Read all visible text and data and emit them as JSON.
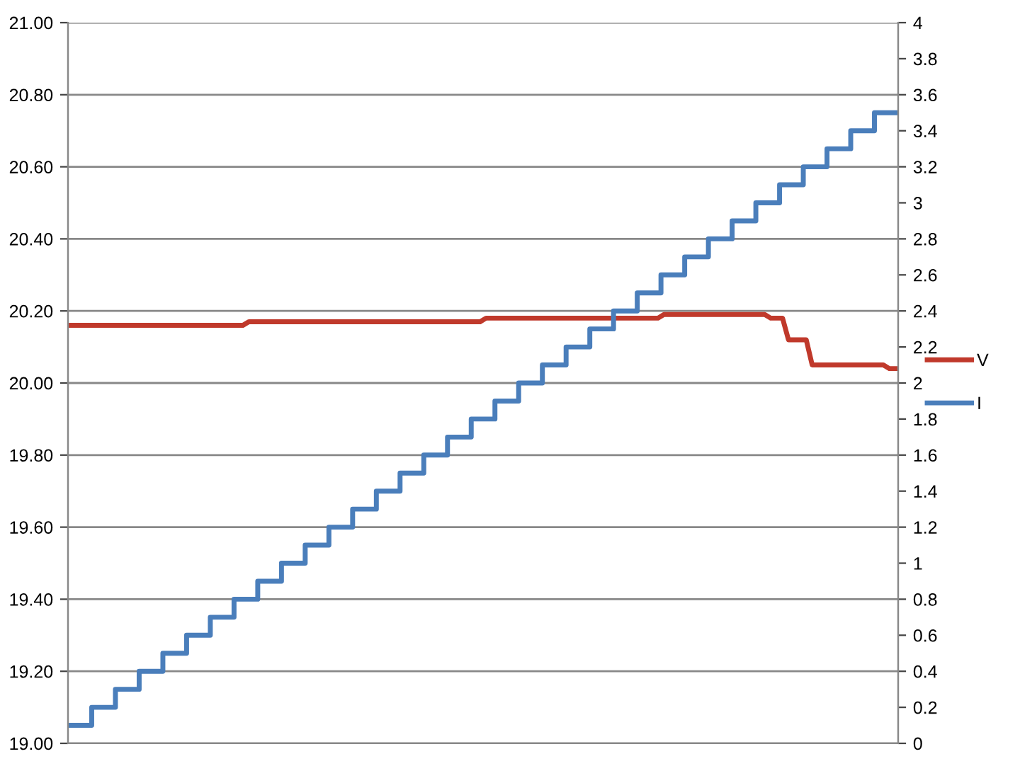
{
  "chart_data": {
    "type": "line",
    "categories": [
      null,
      null,
      null,
      null,
      null,
      null,
      null,
      null,
      null,
      null,
      null,
      null,
      null,
      null,
      null,
      null,
      null,
      null,
      null,
      null,
      null,
      null,
      null,
      null,
      null,
      null,
      null,
      null,
      null,
      null,
      null,
      null,
      null,
      null,
      null,
      null,
      null,
      null,
      null,
      null,
      null,
      null,
      null,
      null,
      null,
      null,
      null,
      null,
      null,
      null,
      null,
      null,
      null,
      null,
      null,
      null,
      null,
      null,
      null,
      null,
      null,
      null,
      null,
      null,
      null,
      null,
      null,
      null,
      null,
      null,
      null,
      null,
      null,
      null,
      null,
      null,
      null,
      null,
      null,
      null,
      null,
      null,
      null,
      null,
      null,
      null,
      null,
      null,
      null,
      null,
      null,
      null,
      null,
      null,
      null,
      null,
      null,
      null,
      null,
      null,
      null,
      null,
      null,
      null,
      null,
      null,
      null,
      null,
      null,
      null,
      null,
      null,
      null,
      null,
      null,
      null,
      null,
      null,
      null,
      null,
      null,
      null,
      null,
      null,
      null,
      null,
      null,
      null,
      null,
      null,
      null,
      null,
      null,
      null,
      null,
      null,
      null,
      null,
      null,
      null
    ],
    "series": [
      {
        "name": "V",
        "color": "#c0392b",
        "values": [
          20.16,
          20.16,
          20.16,
          20.16,
          20.16,
          20.16,
          20.16,
          20.16,
          20.16,
          20.16,
          20.16,
          20.16,
          20.16,
          20.16,
          20.16,
          20.16,
          20.16,
          20.16,
          20.16,
          20.16,
          20.16,
          20.16,
          20.16,
          20.16,
          20.16,
          20.16,
          20.16,
          20.16,
          20.16,
          20.16,
          20.17,
          20.17,
          20.17,
          20.17,
          20.17,
          20.17,
          20.17,
          20.17,
          20.17,
          20.17,
          20.17,
          20.17,
          20.17,
          20.17,
          20.17,
          20.17,
          20.17,
          20.17,
          20.17,
          20.17,
          20.17,
          20.17,
          20.17,
          20.17,
          20.17,
          20.17,
          20.17,
          20.17,
          20.17,
          20.17,
          20.17,
          20.17,
          20.17,
          20.17,
          20.17,
          20.17,
          20.17,
          20.17,
          20.17,
          20.17,
          20.18,
          20.18,
          20.18,
          20.18,
          20.18,
          20.18,
          20.18,
          20.18,
          20.18,
          20.18,
          20.18,
          20.18,
          20.18,
          20.18,
          20.18,
          20.18,
          20.18,
          20.18,
          20.18,
          20.18,
          20.18,
          20.18,
          20.18,
          20.18,
          20.18,
          20.18,
          20.18,
          20.18,
          20.18,
          20.18,
          20.19,
          20.19,
          20.19,
          20.19,
          20.19,
          20.19,
          20.19,
          20.19,
          20.19,
          20.19,
          20.19,
          20.19,
          20.19,
          20.19,
          20.19,
          20.19,
          20.19,
          20.19,
          20.18,
          20.18,
          20.18,
          20.12,
          20.12,
          20.12,
          20.12,
          20.05,
          20.05,
          20.05,
          20.05,
          20.05,
          20.05,
          20.05,
          20.05,
          20.05,
          20.05,
          20.05,
          20.05,
          20.05,
          20.04,
          20.04
        ]
      },
      {
        "name": "I",
        "color": "#4a7ebb",
        "type": "step",
        "axis": "y2",
        "values": [
          0.1,
          0.1,
          0.1,
          0.1,
          0.2,
          0.2,
          0.2,
          0.2,
          0.3,
          0.3,
          0.3,
          0.3,
          0.4,
          0.4,
          0.4,
          0.4,
          0.5,
          0.5,
          0.5,
          0.5,
          0.6,
          0.6,
          0.6,
          0.6,
          0.7,
          0.7,
          0.7,
          0.7,
          0.8,
          0.8,
          0.8,
          0.8,
          0.9,
          0.9,
          0.9,
          0.9,
          1.0,
          1.0,
          1.0,
          1.0,
          1.1,
          1.1,
          1.1,
          1.1,
          1.2,
          1.2,
          1.2,
          1.2,
          1.3,
          1.3,
          1.3,
          1.3,
          1.4,
          1.4,
          1.4,
          1.4,
          1.5,
          1.5,
          1.5,
          1.5,
          1.6,
          1.6,
          1.6,
          1.6,
          1.7,
          1.7,
          1.7,
          1.7,
          1.8,
          1.8,
          1.8,
          1.8,
          1.9,
          1.9,
          1.9,
          1.9,
          2.0,
          2.0,
          2.0,
          2.0,
          2.1,
          2.1,
          2.1,
          2.1,
          2.2,
          2.2,
          2.2,
          2.2,
          2.3,
          2.3,
          2.3,
          2.3,
          2.4,
          2.4,
          2.4,
          2.4,
          2.5,
          2.5,
          2.5,
          2.5,
          2.6,
          2.6,
          2.6,
          2.6,
          2.7,
          2.7,
          2.7,
          2.7,
          2.8,
          2.8,
          2.8,
          2.8,
          2.9,
          2.9,
          2.9,
          2.9,
          3.0,
          3.0,
          3.0,
          3.0,
          3.1,
          3.1,
          3.1,
          3.1,
          3.2,
          3.2,
          3.2,
          3.2,
          3.3,
          3.3,
          3.3,
          3.3,
          3.4,
          3.4,
          3.4,
          3.4,
          3.5,
          3.5,
          3.5,
          3.5
        ]
      }
    ],
    "ylim": [
      19.0,
      21.0
    ],
    "yticks": [
      {
        "value": 19.0,
        "label": "19.00"
      },
      {
        "value": 19.2,
        "label": "19.20"
      },
      {
        "value": 19.4,
        "label": "19.40"
      },
      {
        "value": 19.6,
        "label": "19.60"
      },
      {
        "value": 19.8,
        "label": "19.80"
      },
      {
        "value": 20.0,
        "label": "20.00"
      },
      {
        "value": 20.2,
        "label": "20.20"
      },
      {
        "value": 20.4,
        "label": "20.40"
      },
      {
        "value": 20.6,
        "label": "20.60"
      },
      {
        "value": 20.8,
        "label": "20.80"
      },
      {
        "value": 21.0,
        "label": "21.00"
      }
    ],
    "y2lim": [
      0,
      4
    ],
    "y2ticks": [
      0,
      0.2,
      0.4,
      0.6,
      0.8,
      1,
      1.2,
      1.4,
      1.6,
      1.8,
      2,
      2.2,
      2.4,
      2.6,
      2.8,
      3,
      3.2,
      3.4,
      3.6,
      3.8,
      4
    ],
    "grid": "y",
    "legend": "right"
  }
}
